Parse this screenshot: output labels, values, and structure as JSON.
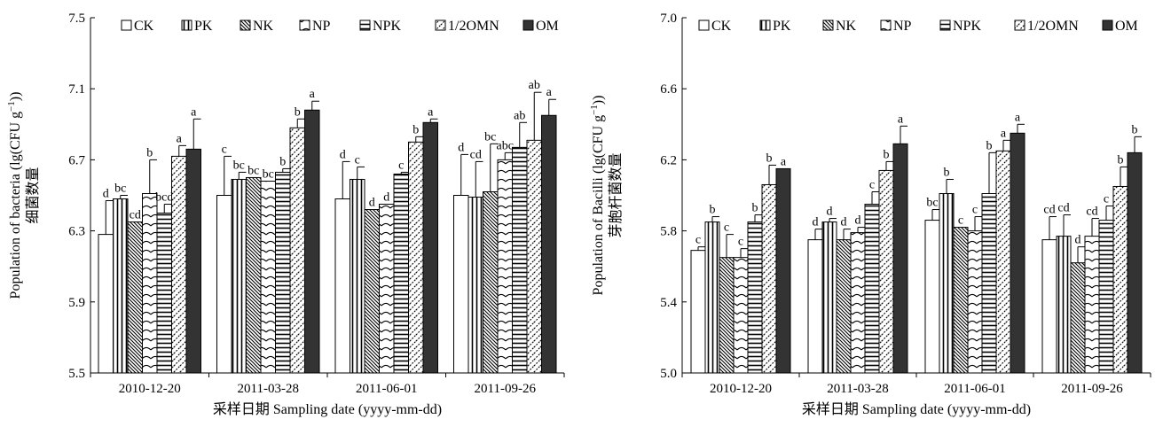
{
  "chart_data": [
    {
      "type": "bar",
      "x": [
        "2010-12-20",
        "2011-03-28",
        "2011-06-01",
        "2011-09-26"
      ],
      "xlabel": "采样日期 Sampling date (yyyy-mm-dd)",
      "ylabel_en_prefix": "Population of bacteria (lg(CFU g",
      "ylabel_sup": "−1",
      "ylabel_en_suffix": "))",
      "ylabel_cn": "细菌数量",
      "ylim": [
        5.5,
        7.5
      ],
      "yticks": [
        "5.5",
        "5.9",
        "6.3",
        "6.7",
        "7.1",
        "7.5"
      ],
      "legend_position": "top",
      "series": [
        {
          "name": "CK",
          "values": [
            6.28,
            6.5,
            6.48,
            6.5
          ],
          "errors": [
            0.19,
            0.22,
            0.21,
            0.23
          ],
          "letters": [
            "d",
            "c",
            "d",
            "d"
          ]
        },
        {
          "name": "PK",
          "values": [
            6.48,
            6.59,
            6.59,
            6.49
          ],
          "errors": [
            0.02,
            0.04,
            0.07,
            0.2
          ],
          "letters": [
            "bc",
            "bc",
            "c",
            "cd"
          ]
        },
        {
          "name": "NK",
          "values": [
            6.35,
            6.6,
            6.42,
            6.52
          ],
          "errors": [
            0.0,
            0.0,
            0.0,
            0.27
          ],
          "letters": [
            "cd",
            "bc",
            "d",
            "bc"
          ]
        },
        {
          "name": "NP",
          "values": [
            6.51,
            6.58,
            6.45,
            6.7
          ],
          "errors": [
            0.19,
            0.0,
            0.0,
            0.04
          ],
          "letters": [
            "b",
            "bc",
            "d",
            "abc"
          ]
        },
        {
          "name": "NPK",
          "values": [
            6.4,
            6.63,
            6.62,
            6.77
          ],
          "errors": [
            0.05,
            0.02,
            0.01,
            0.14
          ],
          "letters": [
            "bcd",
            "b",
            "c",
            "ab"
          ]
        },
        {
          "name": "1/2OMN",
          "values": [
            6.72,
            6.88,
            6.8,
            6.81
          ],
          "errors": [
            0.06,
            0.05,
            0.03,
            0.27
          ],
          "letters": [
            "a",
            "b",
            "b",
            "ab"
          ]
        },
        {
          "name": "OM",
          "values": [
            6.76,
            6.98,
            6.91,
            6.95
          ],
          "errors": [
            0.17,
            0.05,
            0.02,
            0.09
          ],
          "letters": [
            "a",
            "a",
            "a",
            "a"
          ]
        }
      ]
    },
    {
      "type": "bar",
      "x": [
        "2010-12-20",
        "2011-03-28",
        "2011-06-01",
        "2011-09-26"
      ],
      "xlabel": "采样日期 Sampling date (yyyy-mm-dd)",
      "ylabel_en_prefix": "Population of Bacilli (lg(CFU g",
      "ylabel_sup": "−1",
      "ylabel_en_suffix": "))",
      "ylabel_cn": "芽胞杆菌数量",
      "ylim": [
        5.0,
        7.0
      ],
      "yticks": [
        "5.0",
        "5.4",
        "5.8",
        "6.2",
        "6.6",
        "7.0"
      ],
      "legend_position": "top",
      "series": [
        {
          "name": "CK",
          "values": [
            5.69,
            5.75,
            5.86,
            5.75
          ],
          "errors": [
            0.02,
            0.06,
            0.06,
            0.13
          ],
          "letters": [
            "c",
            "d",
            "bc",
            "cd"
          ]
        },
        {
          "name": "PK",
          "values": [
            5.85,
            5.85,
            6.01,
            5.77
          ],
          "errors": [
            0.03,
            0.02,
            0.08,
            0.12
          ],
          "letters": [
            "b",
            "d",
            "b",
            "cd"
          ]
        },
        {
          "name": "NK",
          "values": [
            5.65,
            5.75,
            5.82,
            5.62
          ],
          "errors": [
            0.13,
            0.06,
            0.0,
            0.09
          ],
          "letters": [
            "c",
            "d",
            "c",
            "d"
          ]
        },
        {
          "name": "NP",
          "values": [
            5.65,
            5.79,
            5.8,
            5.77
          ],
          "errors": [
            0.05,
            0.03,
            0.08,
            0.1
          ],
          "letters": [
            "c",
            "d",
            "c",
            "cd"
          ]
        },
        {
          "name": "NPK",
          "values": [
            5.85,
            5.95,
            6.01,
            5.86
          ],
          "errors": [
            0.04,
            0.07,
            0.23,
            0.08
          ],
          "letters": [
            "b",
            "c",
            "b",
            "c"
          ]
        },
        {
          "name": "1/2OMN",
          "values": [
            6.06,
            6.14,
            6.25,
            6.05
          ],
          "errors": [
            0.11,
            0.05,
            0.06,
            0.11
          ],
          "letters": [
            "b",
            "b",
            "a",
            "b"
          ]
        },
        {
          "name": "OM",
          "values": [
            6.15,
            6.29,
            6.35,
            6.24
          ],
          "errors": [
            0.0,
            0.1,
            0.05,
            0.09
          ],
          "letters": [
            "a",
            "a",
            "a",
            "b"
          ]
        }
      ]
    }
  ],
  "colors": {
    "ink": "#000000",
    "paper": "#ffffff",
    "om_fill": "#333333"
  }
}
